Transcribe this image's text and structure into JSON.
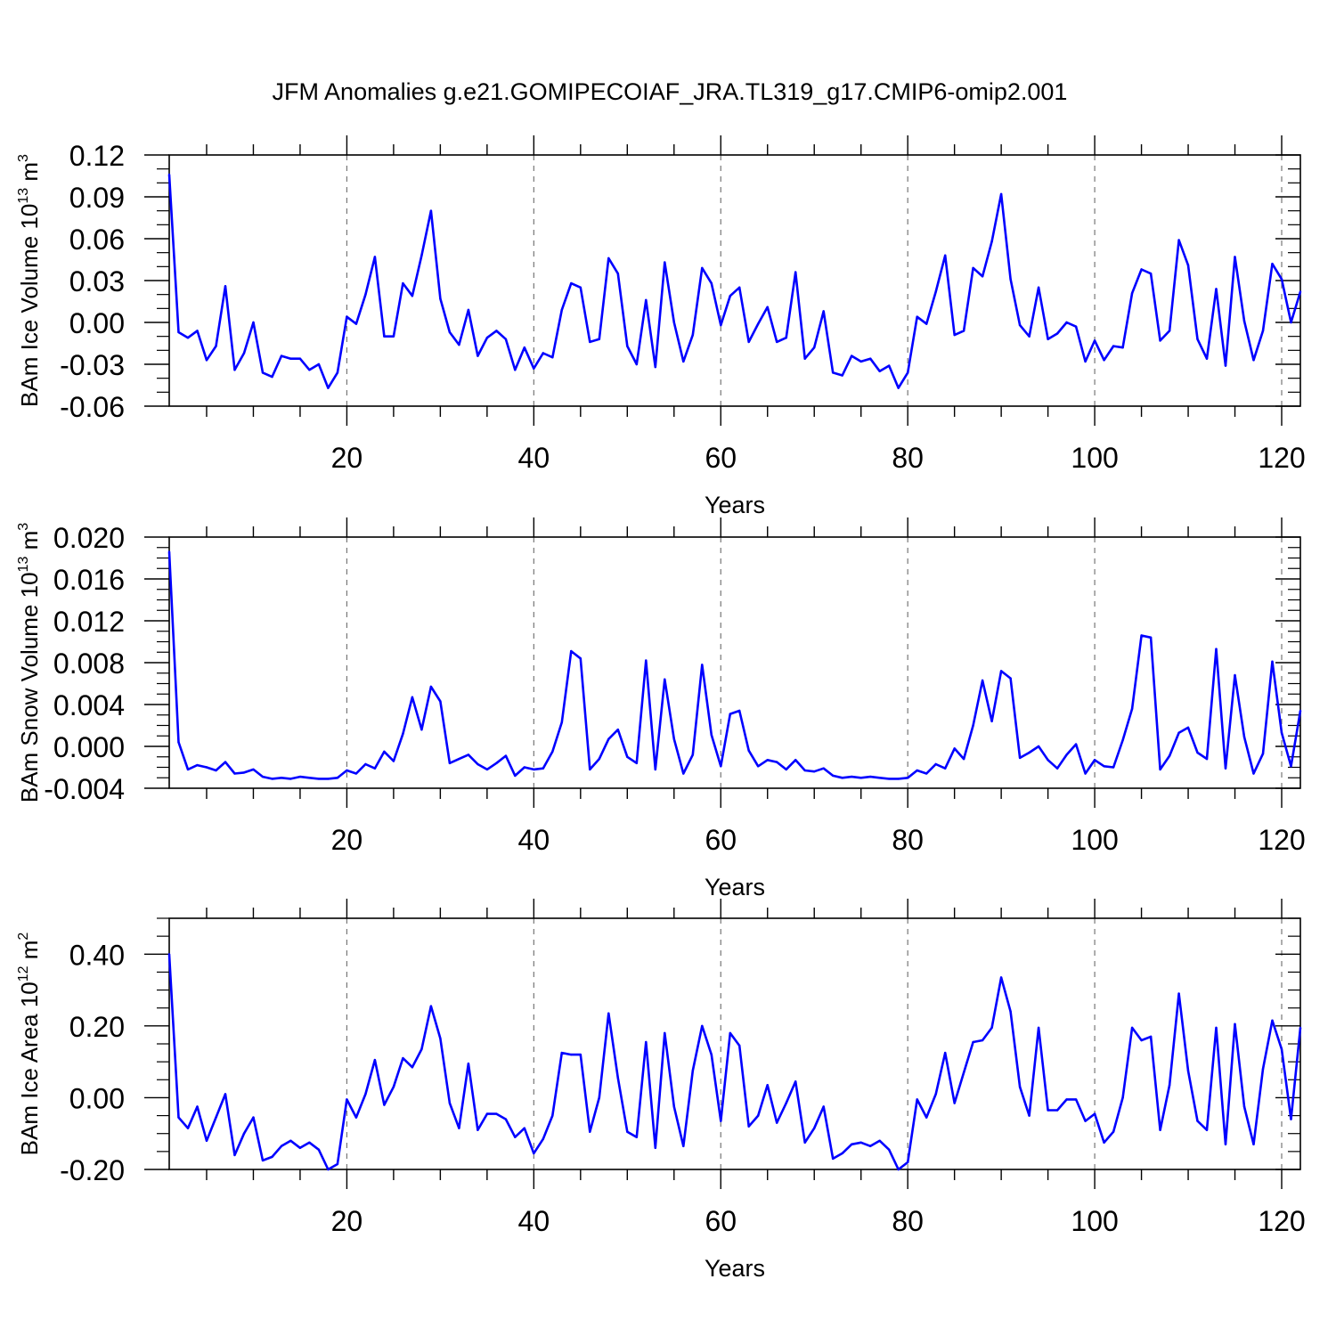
{
  "title": "JFM Anomalies g.e21.GOMIPECOIAF_JRA.TL319_g17.CMIP6-omip2.001",
  "colors": {
    "line": "#0000ff",
    "axis": "#000000",
    "grid": "#777777"
  },
  "chart_data": [
    {
      "type": "line",
      "name": "ice-volume",
      "ylabel": {
        "text": "BAm Ice Volume 10",
        "exp": "13",
        "unit": " m",
        "unit_exp": "3"
      },
      "xlabel": "Years",
      "xlim": [
        1,
        122
      ],
      "ylim": [
        -0.06,
        0.12
      ],
      "xticks": [
        20,
        40,
        60,
        80,
        100,
        120
      ],
      "xtick_labels": [
        "20",
        "40",
        "60",
        "80",
        "100",
        "120"
      ],
      "yticks": [
        -0.06,
        -0.03,
        0.0,
        0.03,
        0.06,
        0.09,
        0.12
      ],
      "ytick_labels": [
        "-0.06",
        "-0.03",
        "0.00",
        "0.03",
        "0.06",
        "0.09",
        "0.12"
      ],
      "yminor": [
        -0.05,
        -0.04,
        -0.02,
        -0.01,
        0.01,
        0.02,
        0.04,
        0.05,
        0.07,
        0.08,
        0.1,
        0.11
      ],
      "values": [
        0.106,
        -0.007,
        -0.011,
        -0.006,
        -0.027,
        -0.017,
        0.026,
        -0.034,
        -0.022,
        0.0,
        -0.036,
        -0.039,
        -0.024,
        -0.026,
        -0.026,
        -0.034,
        -0.03,
        -0.047,
        -0.036,
        0.004,
        -0.001,
        0.02,
        0.047,
        -0.01,
        -0.01,
        0.028,
        0.019,
        0.048,
        0.08,
        0.017,
        -0.007,
        -0.016,
        0.009,
        -0.024,
        -0.011,
        -0.006,
        -0.012,
        -0.034,
        -0.018,
        -0.033,
        -0.022,
        -0.025,
        0.009,
        0.028,
        0.025,
        -0.014,
        -0.012,
        0.046,
        0.035,
        -0.017,
        -0.03,
        0.016,
        -0.032,
        0.043,
        0.0,
        -0.028,
        -0.009,
        0.039,
        0.028,
        -0.002,
        0.019,
        0.025,
        -0.014,
        -0.001,
        0.011,
        -0.014,
        -0.011,
        0.036,
        -0.026,
        -0.018,
        0.008,
        -0.036,
        -0.038,
        -0.024,
        -0.028,
        -0.026,
        -0.035,
        -0.031,
        -0.047,
        -0.036,
        0.004,
        -0.001,
        0.022,
        0.048,
        -0.009,
        -0.006,
        0.039,
        0.033,
        0.058,
        0.092,
        0.031,
        -0.002,
        -0.01,
        0.025,
        -0.012,
        -0.008,
        0.0,
        -0.003,
        -0.028,
        -0.013,
        -0.027,
        -0.017,
        -0.018,
        0.021,
        0.038,
        0.035,
        -0.013,
        -0.006,
        0.059,
        0.041,
        -0.012,
        -0.026,
        0.024,
        -0.031,
        0.047,
        0.001,
        -0.027,
        -0.006,
        0.042,
        0.031,
        0.0,
        0.022
      ]
    },
    {
      "type": "line",
      "name": "snow-volume",
      "ylabel": {
        "text": "BAm Snow Volume 10",
        "exp": "13",
        "unit": " m",
        "unit_exp": "3"
      },
      "xlabel": "Years",
      "xlim": [
        1,
        122
      ],
      "ylim": [
        -0.004,
        0.02
      ],
      "xticks": [
        20,
        40,
        60,
        80,
        100,
        120
      ],
      "xtick_labels": [
        "20",
        "40",
        "60",
        "80",
        "100",
        "120"
      ],
      "yticks": [
        -0.004,
        0.0,
        0.004,
        0.008,
        0.012,
        0.016,
        0.02
      ],
      "ytick_labels": [
        "-0.004",
        "0.000",
        "0.004",
        "0.008",
        "0.012",
        "0.016",
        "0.020"
      ],
      "yminor": [
        -0.003,
        -0.002,
        -0.001,
        0.001,
        0.002,
        0.003,
        0.005,
        0.006,
        0.007,
        0.009,
        0.01,
        0.011,
        0.013,
        0.014,
        0.015,
        0.017,
        0.018,
        0.019
      ],
      "values": [
        0.0186,
        0.0004,
        -0.0022,
        -0.0018,
        -0.002,
        -0.0023,
        -0.0015,
        -0.0026,
        -0.0025,
        -0.0022,
        -0.0029,
        -0.0031,
        -0.003,
        -0.0031,
        -0.0029,
        -0.003,
        -0.0031,
        -0.0031,
        -0.003,
        -0.0023,
        -0.0026,
        -0.0017,
        -0.0021,
        -0.0005,
        -0.0014,
        0.0012,
        0.0047,
        0.0016,
        0.0057,
        0.0043,
        -0.0016,
        -0.0012,
        -0.0008,
        -0.0017,
        -0.0022,
        -0.0016,
        -0.0009,
        -0.0028,
        -0.002,
        -0.0022,
        -0.0021,
        -0.0005,
        0.0023,
        0.0091,
        0.0084,
        -0.0022,
        -0.0012,
        0.0007,
        0.0016,
        -0.001,
        -0.0016,
        0.0082,
        -0.0022,
        0.0064,
        0.0007,
        -0.0026,
        -0.0008,
        0.0078,
        0.0011,
        -0.0019,
        0.0031,
        0.0034,
        -0.0004,
        -0.0019,
        -0.0013,
        -0.0015,
        -0.0022,
        -0.0013,
        -0.0023,
        -0.0024,
        -0.0021,
        -0.0028,
        -0.003,
        -0.0029,
        -0.003,
        -0.0029,
        -0.003,
        -0.0031,
        -0.0031,
        -0.003,
        -0.0023,
        -0.0026,
        -0.0017,
        -0.0021,
        -0.0002,
        -0.0012,
        0.002,
        0.0063,
        0.0024,
        0.0072,
        0.0065,
        -0.0011,
        -0.0006,
        0.0,
        -0.0013,
        -0.0021,
        -0.0008,
        0.0002,
        -0.0026,
        -0.0013,
        -0.0019,
        -0.002,
        0.0006,
        0.0036,
        0.0106,
        0.0104,
        -0.0022,
        -0.0009,
        0.0013,
        0.0018,
        -0.0006,
        -0.0012,
        0.0093,
        -0.0021,
        0.0068,
        0.0009,
        -0.0026,
        -0.0007,
        0.0081,
        0.0013,
        -0.0019,
        0.0034
      ]
    },
    {
      "type": "line",
      "name": "ice-area",
      "ylabel": {
        "text": "BAm Ice Area 10",
        "exp": "12",
        "unit": " m",
        "unit_exp": "2"
      },
      "xlabel": "Years",
      "xlim": [
        1,
        122
      ],
      "ylim": [
        -0.2,
        0.5
      ],
      "xticks": [
        20,
        40,
        60,
        80,
        100,
        120
      ],
      "xtick_labels": [
        "20",
        "40",
        "60",
        "80",
        "100",
        "120"
      ],
      "yticks": [
        -0.2,
        0.0,
        0.2,
        0.4
      ],
      "ytick_labels": [
        "-0.20",
        "0.00",
        "0.20",
        "0.40"
      ],
      "yminor": [
        -0.15,
        -0.1,
        -0.05,
        0.05,
        0.1,
        0.15,
        0.25,
        0.3,
        0.35,
        0.45,
        0.5
      ],
      "values": [
        0.4,
        -0.055,
        -0.085,
        -0.025,
        -0.12,
        -0.055,
        0.01,
        -0.16,
        -0.1,
        -0.055,
        -0.175,
        -0.165,
        -0.135,
        -0.12,
        -0.14,
        -0.125,
        -0.145,
        -0.2,
        -0.185,
        -0.005,
        -0.055,
        0.01,
        0.105,
        -0.02,
        0.03,
        0.11,
        0.085,
        0.135,
        0.255,
        0.165,
        -0.015,
        -0.085,
        0.095,
        -0.09,
        -0.045,
        -0.045,
        -0.06,
        -0.11,
        -0.085,
        -0.155,
        -0.115,
        -0.05,
        0.125,
        0.12,
        0.12,
        -0.095,
        0.0,
        0.235,
        0.055,
        -0.095,
        -0.11,
        0.155,
        -0.14,
        0.18,
        -0.025,
        -0.135,
        0.075,
        0.2,
        0.12,
        -0.065,
        0.18,
        0.145,
        -0.08,
        -0.05,
        0.035,
        -0.07,
        -0.015,
        0.045,
        -0.125,
        -0.085,
        -0.025,
        -0.17,
        -0.155,
        -0.13,
        -0.125,
        -0.135,
        -0.12,
        -0.145,
        -0.2,
        -0.18,
        -0.005,
        -0.055,
        0.01,
        0.125,
        -0.015,
        0.07,
        0.155,
        0.16,
        0.195,
        0.335,
        0.24,
        0.03,
        -0.05,
        0.195,
        -0.035,
        -0.035,
        -0.005,
        -0.005,
        -0.065,
        -0.045,
        -0.125,
        -0.095,
        0.0,
        0.195,
        0.16,
        0.17,
        -0.09,
        0.035,
        0.29,
        0.075,
        -0.065,
        -0.09,
        0.195,
        -0.13,
        0.205,
        -0.025,
        -0.13,
        0.08,
        0.215,
        0.135,
        -0.06,
        0.195
      ]
    }
  ]
}
